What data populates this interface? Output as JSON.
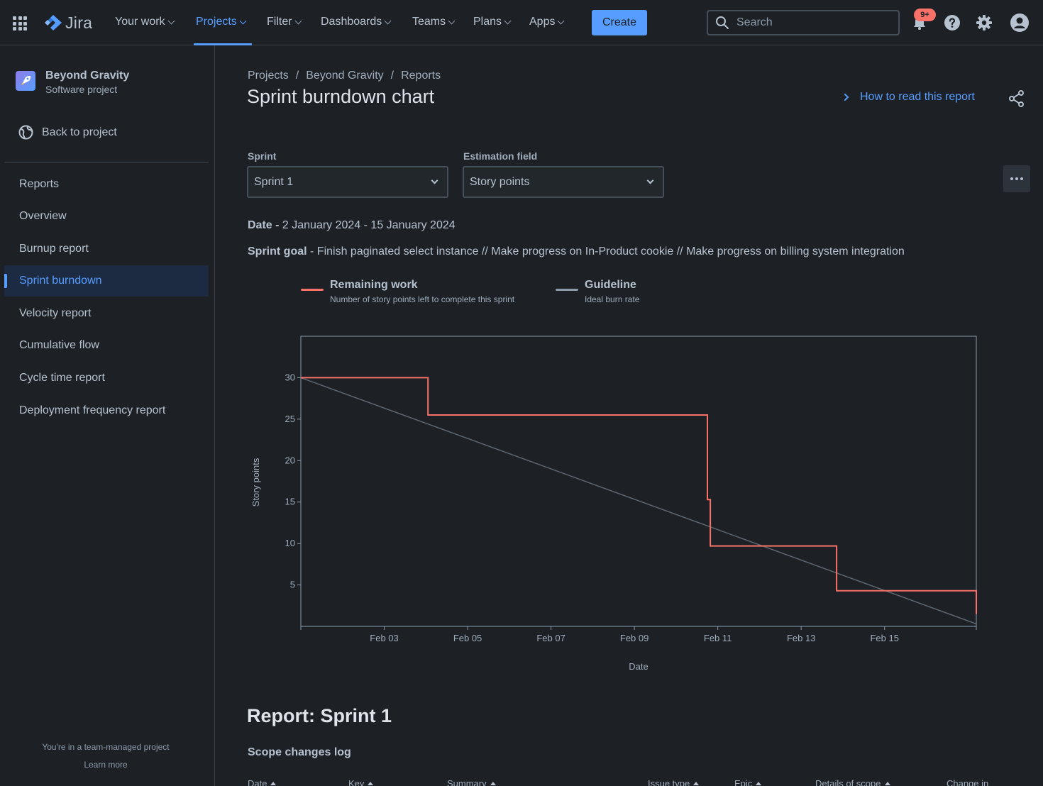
{
  "topnav": {
    "logo_text": "Jira",
    "items": [
      {
        "label": "Your work"
      },
      {
        "label": "Projects"
      },
      {
        "label": "Filter"
      },
      {
        "label": "Dashboards"
      },
      {
        "label": "Teams"
      },
      {
        "label": "Plans"
      },
      {
        "label": "Apps"
      }
    ],
    "active_item": "Projects",
    "create_label": "Create",
    "search_placeholder": "Search",
    "notifications_badge": "9+"
  },
  "sidebar": {
    "project_name": "Beyond Gravity",
    "project_type": "Software project",
    "back_label": "Back to project",
    "items": [
      {
        "label": "Reports"
      },
      {
        "label": "Overview"
      },
      {
        "label": "Burnup report"
      },
      {
        "label": "Sprint burndown"
      },
      {
        "label": "Velocity report"
      },
      {
        "label": "Cumulative flow"
      },
      {
        "label": "Cycle time report"
      },
      {
        "label": "Deployment frequency report"
      }
    ],
    "active_item": "Sprint burndown",
    "footer_text": "You're in a team-managed project",
    "footer_link": "Learn more"
  },
  "main": {
    "breadcrumb": [
      "Projects",
      "Beyond Gravity",
      "Reports"
    ],
    "breadcrumb_sep": "/",
    "title": "Sprint burndown chart",
    "how_to_link": "How to read this report",
    "sprint_label": "Sprint",
    "sprint_value": "Sprint 1",
    "estimation_label": "Estimation field",
    "estimation_value": "Story points",
    "date_label": "Date -",
    "date_value": "2 January 2024 - 15 January 2024",
    "goal_label": "Sprint goal",
    "goal_value": "- Finish paginated select instance // Make progress on In-Product cookie // Make progress on billing system integration",
    "legend": [
      {
        "title": "Remaining work",
        "subtitle": "Number of story points left to complete this sprint",
        "color": "#f87168"
      },
      {
        "title": "Guideline",
        "subtitle": "Ideal burn rate",
        "color": "#8c9bab"
      }
    ],
    "report_title": "Report: Sprint 1",
    "scope_title": "Scope changes log",
    "table_headers": [
      "Date",
      "Key",
      "Summary",
      "Issue type",
      "Epic",
      "Details of scope",
      "Change in"
    ]
  },
  "chart_data": {
    "type": "line",
    "xlabel": "Date",
    "ylabel": "Story points",
    "x_ticks": [
      "Feb 03",
      "Feb 05",
      "Feb 07",
      "Feb 09",
      "Feb 11",
      "Feb 13",
      "Feb 15"
    ],
    "x_tick_days": [
      3,
      5,
      7,
      9,
      11,
      13,
      15
    ],
    "xlim_days": [
      1,
      17.2
    ],
    "y_ticks": [
      5,
      10,
      15,
      20,
      25,
      30
    ],
    "ylim": [
      0,
      35
    ],
    "grid": false,
    "series": [
      {
        "name": "Remaining work",
        "color": "#f87168",
        "step": true,
        "points": [
          [
            1,
            30
          ],
          [
            4.05,
            30
          ],
          [
            4.05,
            25.5
          ],
          [
            10.75,
            25.5
          ],
          [
            10.75,
            15.3
          ],
          [
            10.82,
            15.3
          ],
          [
            10.82,
            9.7
          ],
          [
            13.85,
            9.7
          ],
          [
            13.85,
            4.3
          ],
          [
            17.2,
            4.3
          ],
          [
            17.2,
            1.5
          ]
        ]
      },
      {
        "name": "Guideline",
        "color": "#5d6670",
        "step": false,
        "points": [
          [
            1,
            30
          ],
          [
            17.2,
            0.3
          ]
        ]
      }
    ]
  }
}
